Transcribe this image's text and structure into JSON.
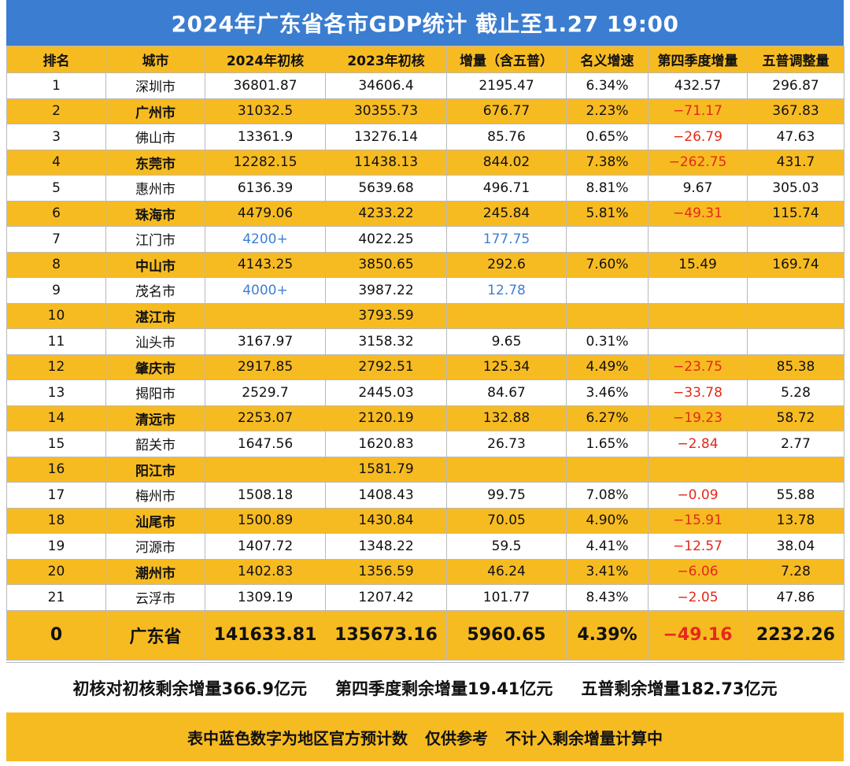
{
  "title": "2024年广东省各市GDP统计 截止至1.27 19:00",
  "headers": [
    "排名",
    "城市",
    "2024年初核",
    "2023年初核",
    "增量（含五普）",
    "名义增速",
    "第四季度增量",
    "五普调整量"
  ],
  "rows": [
    {
      "rank": "1",
      "city": "深圳市",
      "gdp2024": "36801.87",
      "gdp2023": "34606.4",
      "increase": "2195.47",
      "growth": "6.34%",
      "q4": "432.57",
      "adjust": "296.87"
    },
    {
      "rank": "2",
      "city": "广州市",
      "gdp2024": "31032.5",
      "gdp2023": "30355.73",
      "increase": "676.77",
      "growth": "2.23%",
      "q4": "-71.17",
      "adjust": "367.83"
    },
    {
      "rank": "3",
      "city": "佛山市",
      "gdp2024": "13361.9",
      "gdp2023": "13276.14",
      "increase": "85.76",
      "growth": "0.65%",
      "q4": "-26.79",
      "adjust": "47.63"
    },
    {
      "rank": "4",
      "city": "东莞市",
      "gdp2024": "12282.15",
      "gdp2023": "11438.13",
      "increase": "844.02",
      "growth": "7.38%",
      "q4": "-262.75",
      "adjust": "431.7"
    },
    {
      "rank": "5",
      "city": "惠州市",
      "gdp2024": "6136.39",
      "gdp2023": "5639.68",
      "increase": "496.71",
      "growth": "8.81%",
      "q4": "9.67",
      "adjust": "305.03"
    },
    {
      "rank": "6",
      "city": "珠海市",
      "gdp2024": "4479.06",
      "gdp2023": "4233.22",
      "increase": "245.84",
      "growth": "5.81%",
      "q4": "-49.31",
      "adjust": "115.74"
    },
    {
      "rank": "7",
      "city": "江门市",
      "gdp2024": "4200+",
      "gdp2023": "4022.25",
      "increase": "177.75",
      "growth": "",
      "q4": "",
      "adjust": ""
    },
    {
      "rank": "8",
      "city": "中山市",
      "gdp2024": "4143.25",
      "gdp2023": "3850.65",
      "increase": "292.6",
      "growth": "7.60%",
      "q4": "15.49",
      "adjust": "169.74"
    },
    {
      "rank": "9",
      "city": "茂名市",
      "gdp2024": "4000+",
      "gdp2023": "3987.22",
      "increase": "12.78",
      "growth": "",
      "q4": "",
      "adjust": ""
    },
    {
      "rank": "10",
      "city": "湛江市",
      "gdp2024": "",
      "gdp2023": "3793.59",
      "increase": "",
      "growth": "",
      "q4": "",
      "adjust": ""
    },
    {
      "rank": "11",
      "city": "汕头市",
      "gdp2024": "3167.97",
      "gdp2023": "3158.32",
      "increase": "9.65",
      "growth": "0.31%",
      "q4": "",
      "adjust": ""
    },
    {
      "rank": "12",
      "city": "肇庆市",
      "gdp2024": "2917.85",
      "gdp2023": "2792.51",
      "increase": "125.34",
      "growth": "4.49%",
      "q4": "-23.75",
      "adjust": "85.38"
    },
    {
      "rank": "13",
      "city": "揭阳市",
      "gdp2024": "2529.7",
      "gdp2023": "2445.03",
      "increase": "84.67",
      "growth": "3.46%",
      "q4": "-33.78",
      "adjust": "5.28"
    },
    {
      "rank": "14",
      "city": "清远市",
      "gdp2024": "2253.07",
      "gdp2023": "2120.19",
      "increase": "132.88",
      "growth": "6.27%",
      "q4": "-19.23",
      "adjust": "58.72"
    },
    {
      "rank": "15",
      "city": "韶关市",
      "gdp2024": "1647.56",
      "gdp2023": "1620.83",
      "increase": "26.73",
      "growth": "1.65%",
      "q4": "-2.84",
      "adjust": "2.77"
    },
    {
      "rank": "16",
      "city": "阳江市",
      "gdp2024": "",
      "gdp2023": "1581.79",
      "increase": "",
      "growth": "",
      "q4": "",
      "adjust": ""
    },
    {
      "rank": "17",
      "city": "梅州市",
      "gdp2024": "1508.18",
      "gdp2023": "1408.43",
      "increase": "99.75",
      "growth": "7.08%",
      "q4": "-0.09",
      "adjust": "55.88"
    },
    {
      "rank": "18",
      "city": "汕尾市",
      "gdp2024": "1500.89",
      "gdp2023": "1430.84",
      "increase": "70.05",
      "growth": "4.90%",
      "q4": "-15.91",
      "adjust": "13.78"
    },
    {
      "rank": "19",
      "city": "河源市",
      "gdp2024": "1407.72",
      "gdp2023": "1348.22",
      "increase": "59.5",
      "growth": "4.41%",
      "q4": "-12.57",
      "adjust": "38.04"
    },
    {
      "rank": "20",
      "city": "潮州市",
      "gdp2024": "1402.83",
      "gdp2023": "1356.59",
      "increase": "46.24",
      "growth": "3.41%",
      "q4": "-6.06",
      "adjust": "7.28"
    },
    {
      "rank": "21",
      "city": "云浮市",
      "gdp2024": "1309.19",
      "gdp2023": "1207.42",
      "increase": "101.77",
      "growth": "8.43%",
      "q4": "-2.05",
      "adjust": "47.86"
    }
  ],
  "total": {
    "rank": "0",
    "city": "广东省",
    "gdp2024": "141633.81",
    "gdp2023": "135673.16",
    "increase": "5960.65",
    "growth": "4.39%",
    "q4": "-49.16",
    "adjust": "2232.26"
  },
  "notes": {
    "remain_initial": "初核对初核剩余增量366.9亿元",
    "remain_q4": "第四季度剩余增量19.41亿元",
    "remain_census": "五普剩余增量182.73亿元"
  },
  "footer": {
    "part1": "表中蓝色数字为地区官方预计数",
    "part2": "仅供参考",
    "part3": "不计入剩余增量计算中"
  },
  "colors": {
    "title_bg": "#3b7dd0",
    "row_highlight": "#f7bb22",
    "estimate_text": "#3d7fd6",
    "negative_text": "#e4291b"
  },
  "blue_cells": [
    "6.gdp2024",
    "6.increase",
    "8.gdp2024",
    "8.increase"
  ]
}
